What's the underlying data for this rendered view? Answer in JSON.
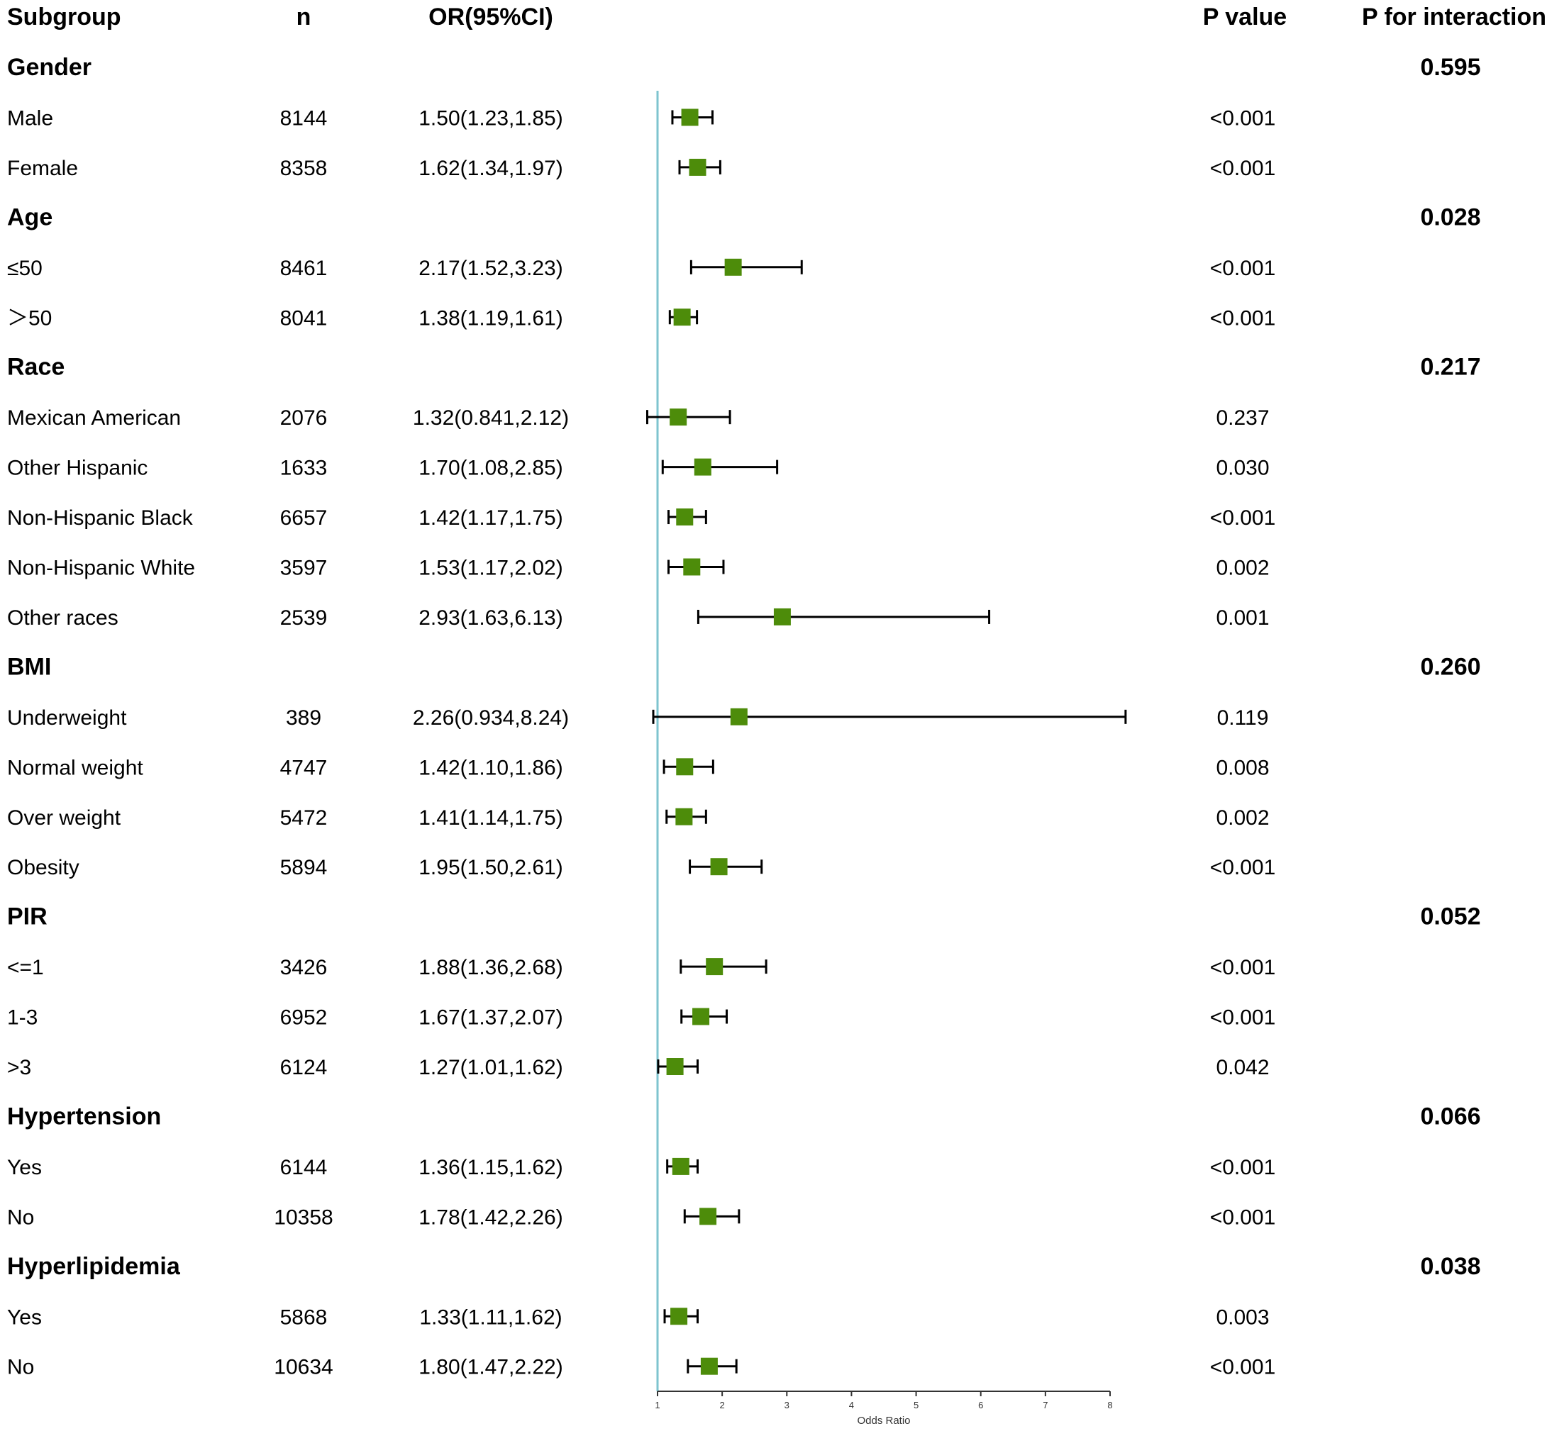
{
  "columns": {
    "subgroup": "Subgroup",
    "n": "n",
    "or_ci": "OR(95%CI)",
    "p_value": "P value",
    "p_interaction": "P for interaction"
  },
  "colors": {
    "marker": "#4d8c0a",
    "reference_line": "#7ec4cf",
    "ci_line": "#000000"
  },
  "chart_data": {
    "type": "forest",
    "xlabel": "Odds Ratio",
    "xlim": [
      1,
      8
    ],
    "xticks": [
      "1",
      "2",
      "3",
      "4",
      "5",
      "6",
      "7",
      "8"
    ],
    "reference_value": 1,
    "rows": [
      {
        "kind": "group",
        "label": "Gender",
        "p_interaction": "0.595"
      },
      {
        "kind": "sub",
        "label": "Male",
        "n": "8144",
        "or_text": "1.50(1.23,1.85)",
        "or": 1.5,
        "lo": 1.23,
        "hi": 1.85,
        "p": "<0.001"
      },
      {
        "kind": "sub",
        "label": "Female",
        "n": "8358",
        "or_text": "1.62(1.34,1.97)",
        "or": 1.62,
        "lo": 1.34,
        "hi": 1.97,
        "p": "<0.001"
      },
      {
        "kind": "group",
        "label": "Age",
        "p_interaction": "0.028"
      },
      {
        "kind": "sub",
        "label": "≤50",
        "n": "8461",
        "or_text": "2.17(1.52,3.23)",
        "or": 2.17,
        "lo": 1.52,
        "hi": 3.23,
        "p": "<0.001"
      },
      {
        "kind": "sub",
        "label": "＞50",
        "n": "8041",
        "or_text": "1.38(1.19,1.61)",
        "or": 1.38,
        "lo": 1.19,
        "hi": 1.61,
        "p": "<0.001"
      },
      {
        "kind": "group",
        "label": "Race",
        "p_interaction": "0.217"
      },
      {
        "kind": "sub",
        "label": "Mexican American",
        "n": "2076",
        "or_text": "1.32(0.841,2.12)",
        "or": 1.32,
        "lo": 0.841,
        "hi": 2.12,
        "p": "0.237"
      },
      {
        "kind": "sub",
        "label": "Other Hispanic",
        "n": "1633",
        "or_text": "1.70(1.08,2.85)",
        "or": 1.7,
        "lo": 1.08,
        "hi": 2.85,
        "p": "0.030"
      },
      {
        "kind": "sub",
        "label": "Non-Hispanic Black",
        "n": "6657",
        "or_text": "1.42(1.17,1.75)",
        "or": 1.42,
        "lo": 1.17,
        "hi": 1.75,
        "p": "<0.001"
      },
      {
        "kind": "sub",
        "label": "Non-Hispanic White",
        "n": "3597",
        "or_text": "1.53(1.17,2.02)",
        "or": 1.53,
        "lo": 1.17,
        "hi": 2.02,
        "p": "0.002"
      },
      {
        "kind": "sub",
        "label": "Other races",
        "n": "2539",
        "or_text": "2.93(1.63,6.13)",
        "or": 2.93,
        "lo": 1.63,
        "hi": 6.13,
        "p": "0.001"
      },
      {
        "kind": "group",
        "label": "BMI",
        "p_interaction": "0.260"
      },
      {
        "kind": "sub",
        "label": "Underweight",
        "n": "389",
        "or_text": "2.26(0.934,8.24)",
        "or": 2.26,
        "lo": 0.934,
        "hi": 8.24,
        "p": "0.119"
      },
      {
        "kind": "sub",
        "label": "Normal weight",
        "n": "4747",
        "or_text": "1.42(1.10,1.86)",
        "or": 1.42,
        "lo": 1.1,
        "hi": 1.86,
        "p": "0.008"
      },
      {
        "kind": "sub",
        "label": "Over weight",
        "n": "5472",
        "or_text": "1.41(1.14,1.75)",
        "or": 1.41,
        "lo": 1.14,
        "hi": 1.75,
        "p": "0.002"
      },
      {
        "kind": "sub",
        "label": "Obesity",
        "n": "5894",
        "or_text": "1.95(1.50,2.61)",
        "or": 1.95,
        "lo": 1.5,
        "hi": 2.61,
        "p": "<0.001"
      },
      {
        "kind": "group",
        "label": "PIR",
        "p_interaction": "0.052"
      },
      {
        "kind": "sub",
        "label": "<=1",
        "n": "3426",
        "or_text": "1.88(1.36,2.68)",
        "or": 1.88,
        "lo": 1.36,
        "hi": 2.68,
        "p": "<0.001"
      },
      {
        "kind": "sub",
        "label": "1-3",
        "n": "6952",
        "or_text": "1.67(1.37,2.07)",
        "or": 1.67,
        "lo": 1.37,
        "hi": 2.07,
        "p": "<0.001"
      },
      {
        "kind": "sub",
        "label": ">3",
        "n": "6124",
        "or_text": "1.27(1.01,1.62)",
        "or": 1.27,
        "lo": 1.01,
        "hi": 1.62,
        "p": "0.042"
      },
      {
        "kind": "group",
        "label": "Hypertension",
        "p_interaction": "0.066"
      },
      {
        "kind": "sub",
        "label": "Yes",
        "n": "6144",
        "or_text": "1.36(1.15,1.62)",
        "or": 1.36,
        "lo": 1.15,
        "hi": 1.62,
        "p": "<0.001"
      },
      {
        "kind": "sub",
        "label": "No",
        "n": "10358",
        "or_text": "1.78(1.42,2.26)",
        "or": 1.78,
        "lo": 1.42,
        "hi": 2.26,
        "p": "<0.001"
      },
      {
        "kind": "group",
        "label": "Hyperlipidemia",
        "p_interaction": "0.038"
      },
      {
        "kind": "sub",
        "label": "Yes",
        "n": "5868",
        "or_text": "1.33(1.11,1.62)",
        "or": 1.33,
        "lo": 1.11,
        "hi": 1.62,
        "p": "0.003"
      },
      {
        "kind": "sub",
        "label": "No",
        "n": "10634",
        "or_text": "1.80(1.47,2.22)",
        "or": 1.8,
        "lo": 1.47,
        "hi": 2.22,
        "p": "<0.001"
      }
    ]
  }
}
